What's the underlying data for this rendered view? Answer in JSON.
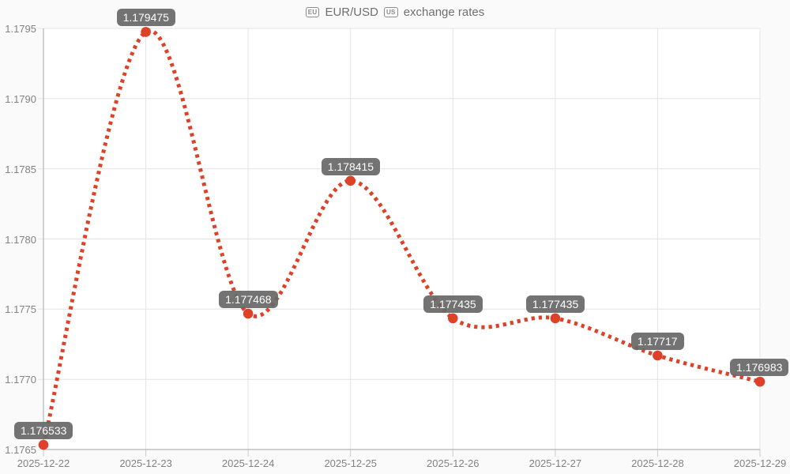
{
  "page": {
    "background": "#fafafa"
  },
  "header": {
    "eu_badge": "EU",
    "title_main": "EUR/USD",
    "us_badge": "US",
    "title_suffix": "exchange rates"
  },
  "chart_data": {
    "type": "line",
    "title": "🇪🇺 EUR/USD 🇺🇸 exchange rates",
    "x": [
      "2025-12-22",
      "2025-12-23",
      "2025-12-24",
      "2025-12-25",
      "2025-12-26",
      "2025-12-27",
      "2025-12-28",
      "2025-12-29"
    ],
    "values": [
      1.176533,
      1.179475,
      1.177468,
      1.178415,
      1.177435,
      1.177435,
      1.17717,
      1.176983
    ],
    "point_labels": [
      "1.176533",
      "1.179475",
      "1.177468",
      "1.178415",
      "1.177435",
      "1.177435",
      "1.17717",
      "1.176983"
    ],
    "xlabel": "",
    "ylabel": "",
    "ylim": [
      1.1765,
      1.1795
    ],
    "yticks": [
      1.1765,
      1.177,
      1.1775,
      1.178,
      1.1785,
      1.179,
      1.1795
    ],
    "ytick_labels": [
      "1.1765",
      "1.1770",
      "1.1775",
      "1.1780",
      "1.1785",
      "1.1790",
      "1.1795"
    ],
    "grid": true,
    "legend_position": "none",
    "line_style": "dotted",
    "colors": {
      "line": "#dd4127",
      "marker": "#dd4127",
      "point_label_bg": "#686868",
      "point_label_text": "#ffffff",
      "grid": "#e4e4e4",
      "axis": "#b5b5b5",
      "tick": "#cccccc",
      "tick_text": "#828282",
      "title_text": "#6f6f6f",
      "plot_bg": "#ffffff",
      "page_bg": "#fafafa"
    }
  }
}
